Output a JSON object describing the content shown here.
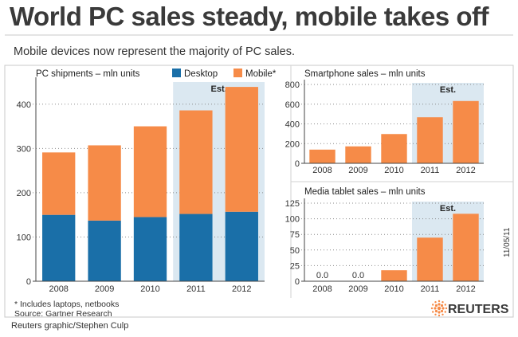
{
  "header": {
    "title": "World PC sales steady, mobile takes off",
    "subtitle": "Mobile devices now represent the majority of PC sales."
  },
  "footer": {
    "footnote": "* Includes laptops, netbooks",
    "source": "Source: Gartner Research",
    "date": "11/05/11",
    "brand": "REUTERS",
    "credit": "Reuters graphic/Stephen Culp"
  },
  "colors": {
    "desktop": "#1a6fa8",
    "mobile": "#f68b48",
    "estimate_band": "#dbe8f1"
  },
  "chart_data": [
    {
      "type": "bar",
      "stacked": true,
      "title": "PC shipments – mln units",
      "categories": [
        "2008",
        "2009",
        "2010",
        "2011",
        "2012"
      ],
      "series": [
        {
          "name": "Desktop",
          "values": [
            150,
            137,
            145,
            152,
            157
          ]
        },
        {
          "name": "Mobile*",
          "values": [
            141,
            170,
            205,
            234,
            282
          ]
        }
      ],
      "ylim": [
        0,
        450
      ],
      "yticks": [
        0,
        100,
        200,
        300,
        400
      ],
      "estimate_label": "Est.",
      "estimate_categories": [
        "2011",
        "2012"
      ],
      "legend": "top-right",
      "grid": true
    },
    {
      "type": "bar",
      "title": "Smartphone sales – mln units",
      "categories": [
        "2008",
        "2009",
        "2010",
        "2011",
        "2012"
      ],
      "values": [
        139,
        172,
        297,
        467,
        632
      ],
      "ylim": [
        0,
        800
      ],
      "yticks": [
        0,
        200,
        400,
        600,
        800
      ],
      "estimate_label": "Est.",
      "estimate_categories": [
        "2011",
        "2012"
      ],
      "grid": true
    },
    {
      "type": "bar",
      "title": "Media tablet sales – mln units",
      "categories": [
        "2008",
        "2009",
        "2010",
        "2011",
        "2012"
      ],
      "values": [
        0,
        0,
        17.6,
        69.8,
        108
      ],
      "value_labels": [
        "0.0",
        "0.0",
        "",
        "",
        ""
      ],
      "ylim": [
        0,
        125
      ],
      "yticks": [
        0,
        25,
        50,
        75,
        100,
        125
      ],
      "estimate_label": "Est.",
      "estimate_categories": [
        "2011",
        "2012"
      ],
      "grid": true
    }
  ]
}
